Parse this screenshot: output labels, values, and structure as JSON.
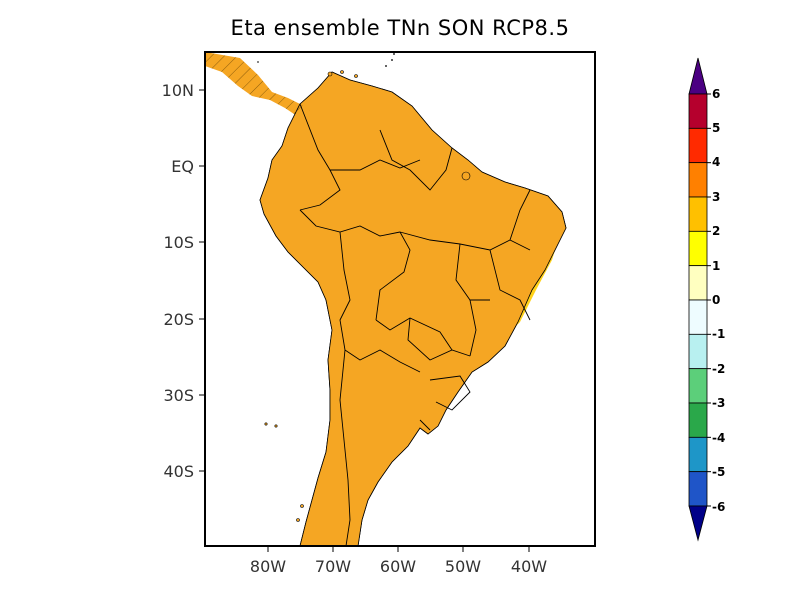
{
  "title": "Eta ensemble TNn SON RCP8.5",
  "lat_axis": [
    "10N",
    "EQ",
    "10S",
    "20S",
    "30S",
    "40S"
  ],
  "lon_axis": [
    "80W",
    "70W",
    "60W",
    "50W",
    "40W"
  ],
  "colorbar": {
    "labels": [
      "6",
      "5",
      "4",
      "3",
      "2",
      "1",
      "0",
      "-1",
      "-2",
      "-3",
      "-4",
      "-5",
      "-6"
    ],
    "colors": [
      "#b5002d",
      "#ff2a00",
      "#ff8000",
      "#ffc000",
      "#ffff00",
      "#ffffc0",
      "#eefcff",
      "#b8f0f0",
      "#5ccf7a",
      "#2aa84a",
      "#1e96c8",
      "#1f55c8"
    ],
    "top_arrow_color": "#4b0082",
    "bottom_arrow_color": "#000088"
  },
  "map": {
    "ocean_color": "#ffffff",
    "land_fill_color": "#f5a623",
    "hatch": true
  }
}
